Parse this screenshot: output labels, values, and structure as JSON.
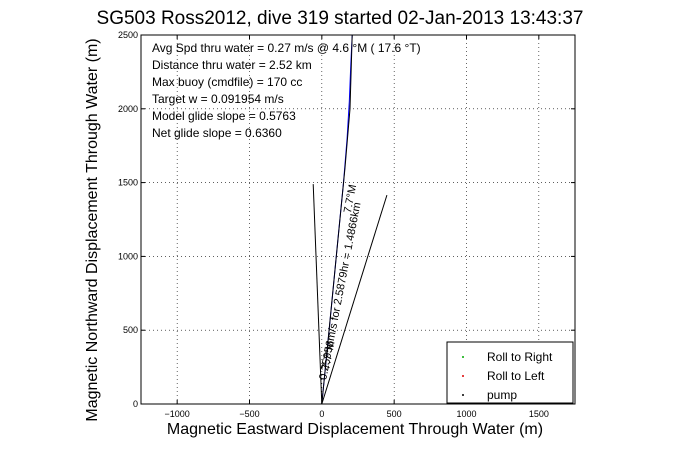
{
  "chart_data": {
    "type": "line",
    "title": "SG503 Ross2012, dive 319 started 02-Jan-2013 13:43:37",
    "xlabel": "Magnetic Eastward Displacement Through Water (m)",
    "ylabel": "Magnetic Northward Displacement Through Water (m)",
    "xlim": [
      -1250,
      1750
    ],
    "ylim": [
      0,
      2500
    ],
    "xticks": [
      -1000,
      -500,
      0,
      500,
      1000,
      1500
    ],
    "yticks": [
      0,
      500,
      1000,
      1500,
      2000,
      2500
    ],
    "grid": true,
    "legend_position": "bottom-right",
    "info_lines": [
      "Avg Spd thru water =  0.27 m/s @   4.6   °M ( 17.6 °T)",
      "Distance thru water =  2.52 km",
      "Max buoy (cmdfile) = 170 cc",
      "Target w = 0.091954 m/s",
      "Model glide slope = 0.5763",
      "Net glide slope = 0.6360"
    ],
    "annotations": [
      {
        "text": "7.7°M",
        "x": 200,
        "y": 1290,
        "rotation": -79
      },
      {
        "text": "0.25956m/s for 2.5879hr = 1.4866km",
        "x": 30,
        "y": 160,
        "rotation": -79
      },
      {
        "text": "7.7°M",
        "x": 50,
        "y": 230,
        "rotation": -79
      }
    ],
    "legend": [
      {
        "label": "Roll to Right",
        "color": "#00aa00"
      },
      {
        "label": "Roll to Left",
        "color": "#dd0000"
      },
      {
        "label": "pump",
        "color": "#000000"
      }
    ],
    "series": [
      {
        "color": "#0000ff",
        "x": [
          0,
          30,
          70,
          110,
          150,
          175,
          190,
          200,
          210
        ],
        "y": [
          0,
          300,
          700,
          1100,
          1500,
          1800,
          2050,
          2300,
          2500
        ]
      },
      {
        "color": "#000000",
        "x": [
          0,
          35,
          80,
          120,
          160,
          195,
          210
        ],
        "y": [
          0,
          350,
          800,
          1200,
          1600,
          2000,
          2500
        ]
      },
      {
        "color": "#000000",
        "x": [
          0,
          -60
        ],
        "y": [
          0,
          1490
        ]
      },
      {
        "color": "#000000",
        "x": [
          0,
          450
        ],
        "y": [
          0,
          1415
        ]
      }
    ]
  }
}
